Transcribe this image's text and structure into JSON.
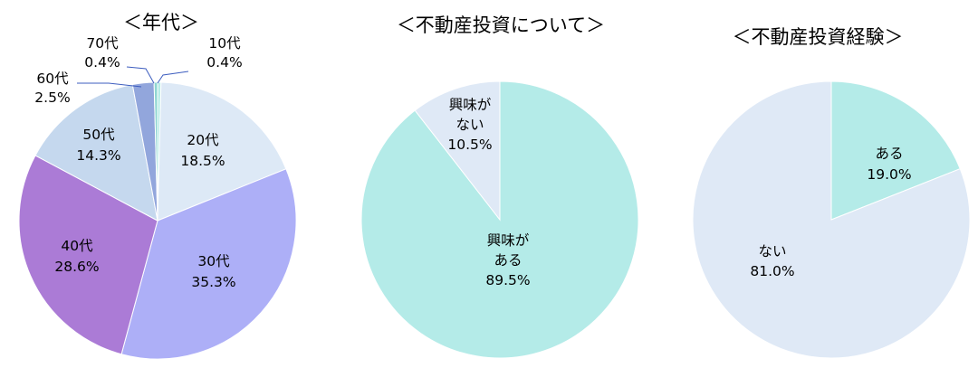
{
  "chart_data": [
    {
      "type": "pie",
      "title": "＜年代＞",
      "slices": [
        {
          "label": "10代",
          "value": 0.4,
          "value_text": "0.4%",
          "color": "#b7ece7"
        },
        {
          "label": "20代",
          "value": 18.5,
          "value_text": "18.5%",
          "color": "#dde9f6"
        },
        {
          "label": "30代",
          "value": 35.3,
          "value_text": "35.3%",
          "color": "#adaff7"
        },
        {
          "label": "40代",
          "value": 28.6,
          "value_text": "28.6%",
          "color": "#ab7bd6"
        },
        {
          "label": "50代",
          "value": 14.3,
          "value_text": "14.3%",
          "color": "#c5d8ee"
        },
        {
          "label": "60代",
          "value": 2.5,
          "value_text": "2.5%",
          "color": "#92a6dc"
        },
        {
          "label": "70代",
          "value": 0.4,
          "value_text": "0.4%",
          "color": "#8fd6d2"
        }
      ]
    },
    {
      "type": "pie",
      "title": "＜不動産投資について＞",
      "slices": [
        {
          "label": "興味がある",
          "value": 89.5,
          "value_text": "89.5%",
          "color": "#b4ebe8"
        },
        {
          "label": "興味がない",
          "value": 10.5,
          "value_text": "10.5%",
          "color": "#dfe9f6"
        }
      ]
    },
    {
      "type": "pie",
      "title": "＜不動産投資経験＞",
      "slices": [
        {
          "label": "ある",
          "value": 19.0,
          "value_text": "19.0%",
          "color": "#b4ebe8"
        },
        {
          "label": "ない",
          "value": 81.0,
          "value_text": "81.0%",
          "color": "#dfe9f6"
        }
      ]
    }
  ]
}
